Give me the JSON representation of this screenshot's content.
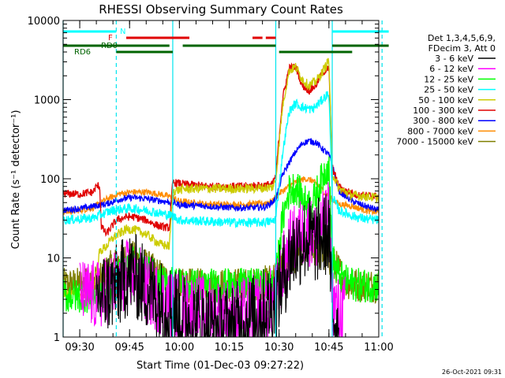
{
  "chart_data": {
    "type": "line",
    "title": "RHESSI Observing Summary Count Rates",
    "xlabel": "Start Time (01-Dec-03 09:27:22)",
    "ylabel": "Count Rate (s⁻¹ detector⁻¹)",
    "y_scale": "log",
    "ylim": [
      1,
      10000
    ],
    "xlim_min": [
      25,
      120
    ],
    "x_ticks": [
      {
        "min": 30,
        "label": "09:30"
      },
      {
        "min": 45,
        "label": "09:45"
      },
      {
        "min": 60,
        "label": "10:00"
      },
      {
        "min": 75,
        "label": "10:15"
      },
      {
        "min": 90,
        "label": "10:30"
      },
      {
        "min": 105,
        "label": "10:45"
      },
      {
        "min": 120,
        "label": "11:00"
      }
    ],
    "y_ticks": [
      {
        "v": 1,
        "label": "1"
      },
      {
        "v": 10,
        "label": "10"
      },
      {
        "v": 100,
        "label": "100"
      },
      {
        "v": 1000,
        "label": "1000"
      },
      {
        "v": 10000,
        "label": "10000"
      }
    ],
    "legend": {
      "header": [
        "Det 1,3,4,5,6,9,",
        "FDecim 3, Att 0"
      ],
      "placement": "right"
    },
    "flags": [
      {
        "label": "N",
        "color": "#00ffff",
        "row": 1,
        "segments": [
          [
            25,
            41
          ],
          [
            106,
            123
          ]
        ]
      },
      {
        "label": "F",
        "color": "#e00000",
        "row": 2,
        "segments": [
          [
            44,
            63
          ],
          [
            82,
            85
          ],
          [
            86,
            89
          ]
        ]
      },
      {
        "label": "RD0",
        "color": "#006400",
        "row": 3,
        "segments": [
          [
            25,
            57
          ],
          [
            61,
            89
          ],
          [
            106,
            123
          ]
        ]
      },
      {
        "label": "RD6",
        "color": "#006400",
        "row": 4,
        "segments": [
          [
            41,
            58
          ],
          [
            90,
            112
          ]
        ]
      }
    ],
    "vlines": [
      {
        "x": 25,
        "style": "solid"
      },
      {
        "x": 41,
        "style": "dashed"
      },
      {
        "x": 58,
        "style": "solid"
      },
      {
        "x": 89,
        "style": "solid"
      },
      {
        "x": 106,
        "style": "solid"
      },
      {
        "x": 121,
        "style": "dashed"
      }
    ],
    "series": [
      {
        "name": "3 - 6 keV",
        "color": "#000000",
        "noise": 0.55,
        "points": [
          [
            35,
            3.2
          ],
          [
            42,
            4.5
          ],
          [
            44,
            6
          ],
          [
            46,
            6.5
          ],
          [
            48,
            5
          ],
          [
            52,
            3.5
          ],
          [
            56,
            2.5
          ],
          [
            58,
            2.5
          ],
          [
            60,
            2
          ],
          [
            64,
            1.6
          ],
          [
            68,
            1.4
          ],
          [
            72,
            1.3
          ],
          [
            76,
            1.4
          ],
          [
            80,
            1.6
          ],
          [
            84,
            2
          ],
          [
            88,
            2.5
          ],
          [
            89,
            3
          ],
          [
            92,
            7
          ],
          [
            94,
            12
          ],
          [
            97,
            16
          ],
          [
            99,
            18
          ],
          [
            101,
            16
          ],
          [
            103,
            18
          ],
          [
            105,
            22
          ],
          [
            106,
            2
          ],
          [
            108,
            1.5
          ]
        ]
      },
      {
        "name": "6 - 12 keV",
        "color": "#ff00ff",
        "noise": 0.45,
        "points": [
          [
            30,
            3.5
          ],
          [
            36,
            3.3
          ],
          [
            40,
            4.5
          ],
          [
            44,
            6
          ],
          [
            46,
            6.5
          ],
          [
            50,
            4
          ],
          [
            54,
            3
          ],
          [
            58,
            2.5
          ],
          [
            60,
            2.5
          ],
          [
            66,
            2.2
          ],
          [
            72,
            2
          ],
          [
            78,
            2
          ],
          [
            82,
            2.2
          ],
          [
            86,
            2.5
          ],
          [
            89,
            3
          ],
          [
            91,
            7
          ],
          [
            93,
            14
          ],
          [
            96,
            20
          ],
          [
            99,
            22
          ],
          [
            101,
            18
          ],
          [
            103,
            24
          ],
          [
            105,
            35
          ],
          [
            106,
            3
          ],
          [
            108,
            2
          ],
          [
            110,
            2.2
          ]
        ]
      },
      {
        "name": "12 - 25 keV",
        "color": "#00ff00",
        "noise": 0.22,
        "points": [
          [
            25,
            3.3
          ],
          [
            34,
            3.3
          ],
          [
            38,
            3.5
          ],
          [
            42,
            6
          ],
          [
            44,
            8
          ],
          [
            46,
            9
          ],
          [
            50,
            7.5
          ],
          [
            54,
            5
          ],
          [
            57,
            4.5
          ],
          [
            58,
            5
          ],
          [
            62,
            4.5
          ],
          [
            70,
            4.5
          ],
          [
            78,
            4.5
          ],
          [
            84,
            4.5
          ],
          [
            88,
            4.5
          ],
          [
            89,
            5.5
          ],
          [
            91,
            30
          ],
          [
            93,
            70
          ],
          [
            95,
            80
          ],
          [
            98,
            50
          ],
          [
            100,
            48
          ],
          [
            102,
            80
          ],
          [
            104,
            130
          ],
          [
            105,
            150
          ],
          [
            106,
            10
          ],
          [
            108,
            6
          ],
          [
            110,
            5
          ],
          [
            114,
            4.5
          ],
          [
            120,
            4.5
          ],
          [
            123,
            4.5
          ]
        ]
      },
      {
        "name": "25 - 50 keV",
        "color": "#00ffff",
        "noise": 0.06,
        "points": [
          [
            25,
            30
          ],
          [
            34,
            32
          ],
          [
            37,
            36
          ],
          [
            40,
            40
          ],
          [
            44,
            42
          ],
          [
            46,
            42
          ],
          [
            50,
            40
          ],
          [
            55,
            36
          ],
          [
            58,
            34
          ],
          [
            60,
            30
          ],
          [
            68,
            29
          ],
          [
            76,
            28
          ],
          [
            84,
            28
          ],
          [
            88,
            29
          ],
          [
            89,
            32
          ],
          [
            91,
            200
          ],
          [
            93,
            700
          ],
          [
            95,
            900
          ],
          [
            97,
            800
          ],
          [
            100,
            750
          ],
          [
            102,
            900
          ],
          [
            104,
            1100
          ],
          [
            105,
            1200
          ],
          [
            106,
            60
          ],
          [
            108,
            40
          ],
          [
            112,
            34
          ],
          [
            116,
            31
          ],
          [
            120,
            30
          ],
          [
            123,
            30
          ]
        ]
      },
      {
        "name": "50 - 100 keV",
        "color": "#cccc00",
        "noise": 0.06,
        "points": [
          [
            25,
            3.5
          ],
          [
            30,
            3.4
          ],
          [
            34,
            3.6
          ],
          [
            36,
            12
          ],
          [
            38,
            14
          ],
          [
            40,
            18
          ],
          [
            44,
            23
          ],
          [
            46,
            23
          ],
          [
            50,
            20
          ],
          [
            54,
            15
          ],
          [
            57,
            14
          ],
          [
            58,
            70
          ],
          [
            62,
            75
          ],
          [
            70,
            75
          ],
          [
            78,
            75
          ],
          [
            84,
            76
          ],
          [
            88,
            78
          ],
          [
            89,
            95
          ],
          [
            91,
            800
          ],
          [
            93,
            2300
          ],
          [
            95,
            2600
          ],
          [
            97,
            1800
          ],
          [
            99,
            1500
          ],
          [
            101,
            1700
          ],
          [
            103,
            2200
          ],
          [
            105,
            3200
          ],
          [
            106,
            120
          ],
          [
            108,
            75
          ],
          [
            112,
            62
          ],
          [
            116,
            60
          ],
          [
            120,
            57
          ],
          [
            123,
            56
          ]
        ]
      },
      {
        "name": "100 - 300 keV",
        "color": "#e00000",
        "noise": 0.05,
        "points": [
          [
            25,
            65
          ],
          [
            30,
            64
          ],
          [
            34,
            68
          ],
          [
            35,
            80
          ],
          [
            36,
            82
          ],
          [
            36.5,
            25
          ],
          [
            38,
            20
          ],
          [
            41,
            30
          ],
          [
            44,
            33
          ],
          [
            46,
            33
          ],
          [
            50,
            30
          ],
          [
            54,
            25
          ],
          [
            57,
            24
          ],
          [
            58,
            90
          ],
          [
            62,
            85
          ],
          [
            70,
            80
          ],
          [
            78,
            80
          ],
          [
            84,
            82
          ],
          [
            88,
            85
          ],
          [
            89,
            110
          ],
          [
            91,
            1000
          ],
          [
            93,
            2500
          ],
          [
            95,
            2600
          ],
          [
            97,
            1500
          ],
          [
            99,
            1300
          ],
          [
            101,
            1500
          ],
          [
            103,
            2200
          ],
          [
            105,
            2500
          ],
          [
            106,
            140
          ],
          [
            108,
            80
          ],
          [
            110,
            70
          ],
          [
            114,
            62
          ],
          [
            120,
            60
          ],
          [
            123,
            60
          ]
        ]
      },
      {
        "name": "300 - 800 keV",
        "color": "#0000ff",
        "noise": 0.04,
        "points": [
          [
            25,
            40
          ],
          [
            30,
            42
          ],
          [
            34,
            45
          ],
          [
            38,
            48
          ],
          [
            42,
            55
          ],
          [
            46,
            58
          ],
          [
            50,
            56
          ],
          [
            55,
            52
          ],
          [
            58,
            50
          ],
          [
            60,
            47
          ],
          [
            68,
            45
          ],
          [
            76,
            43
          ],
          [
            82,
            43
          ],
          [
            86,
            44
          ],
          [
            89,
            55
          ],
          [
            91,
            110
          ],
          [
            93,
            160
          ],
          [
            95,
            220
          ],
          [
            97,
            280
          ],
          [
            99,
            300
          ],
          [
            101,
            290
          ],
          [
            103,
            240
          ],
          [
            105,
            200
          ],
          [
            106,
            150
          ],
          [
            108,
            70
          ],
          [
            112,
            52
          ],
          [
            116,
            45
          ],
          [
            120,
            40
          ],
          [
            123,
            40
          ]
        ]
      },
      {
        "name": "800 - 7000 keV",
        "color": "#ff8c00",
        "noise": 0.04,
        "points": [
          [
            25,
            38
          ],
          [
            30,
            40
          ],
          [
            34,
            43
          ],
          [
            38,
            55
          ],
          [
            42,
            65
          ],
          [
            46,
            68
          ],
          [
            50,
            68
          ],
          [
            55,
            63
          ],
          [
            58,
            58
          ],
          [
            60,
            52
          ],
          [
            68,
            48
          ],
          [
            76,
            47
          ],
          [
            84,
            48
          ],
          [
            88,
            52
          ],
          [
            89,
            60
          ],
          [
            91,
            70
          ],
          [
            93,
            80
          ],
          [
            96,
            95
          ],
          [
            98,
            100
          ],
          [
            100,
            95
          ],
          [
            102,
            80
          ],
          [
            104,
            65
          ],
          [
            106,
            55
          ],
          [
            108,
            48
          ],
          [
            112,
            45
          ],
          [
            116,
            40
          ],
          [
            120,
            37
          ],
          [
            123,
            37
          ]
        ]
      },
      {
        "name": "7000 - 15000 keV",
        "color": "#7f7f00",
        "noise": 0.22,
        "points": [
          [
            25,
            4.5
          ],
          [
            32,
            4.7
          ],
          [
            36,
            5
          ],
          [
            38,
            7
          ],
          [
            42,
            9
          ],
          [
            46,
            10
          ],
          [
            50,
            8
          ],
          [
            54,
            6
          ],
          [
            58,
            4.5
          ],
          [
            60,
            4.5
          ],
          [
            68,
            4.5
          ],
          [
            76,
            4.5
          ],
          [
            82,
            4.5
          ],
          [
            86,
            5
          ],
          [
            88,
            5.5
          ],
          [
            90,
            7
          ],
          [
            94,
            10
          ],
          [
            97,
            12
          ],
          [
            100,
            13
          ],
          [
            103,
            11
          ],
          [
            106,
            9
          ],
          [
            108,
            7
          ],
          [
            110,
            5
          ],
          [
            114,
            4.5
          ],
          [
            120,
            4.5
          ],
          [
            123,
            4.5
          ]
        ]
      }
    ],
    "footer_timestamp": "26-Oct-2021 09:31"
  }
}
